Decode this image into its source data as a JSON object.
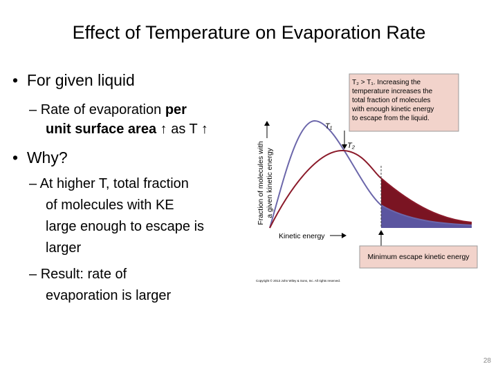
{
  "slide": {
    "title": "Effect of Temperature on Evaporation Rate",
    "bullets": [
      {
        "text": "For given liquid",
        "sub": [
          {
            "lines": [
              [
                "Rate of evaporation ",
                "per"
              ],
              [
                "unit surface area",
                " ↑ as T ↑"
              ]
            ]
          }
        ]
      },
      {
        "text": "Why?",
        "sub": [
          {
            "lines": [
              [
                "At higher T, total fraction"
              ],
              [
                "of molecules with KE"
              ],
              [
                "large enough to escape is"
              ],
              [
                "larger"
              ]
            ]
          },
          {
            "lines": [
              [
                "Result: rate of"
              ],
              [
                "evaporation is larger"
              ]
            ]
          }
        ]
      }
    ],
    "figure": {
      "caption_lines": [
        "T₂ > T₁. Increasing the",
        "temperature increases the",
        "total fraction of molecules",
        "with enough kinetic energy",
        "to escape from the liquid."
      ],
      "curve_labels": [
        "T₁",
        "T₂"
      ],
      "y_axis_label": [
        "Fraction of molecules with",
        "a given kinetic energy"
      ],
      "x_axis_label": "Kinetic energy",
      "threshold_label": "Minimum escape kinetic energy",
      "copyright": "Copyright © 2013 John Wiley & Sons, Inc. All rights reserved."
    },
    "page_number": "28"
  }
}
